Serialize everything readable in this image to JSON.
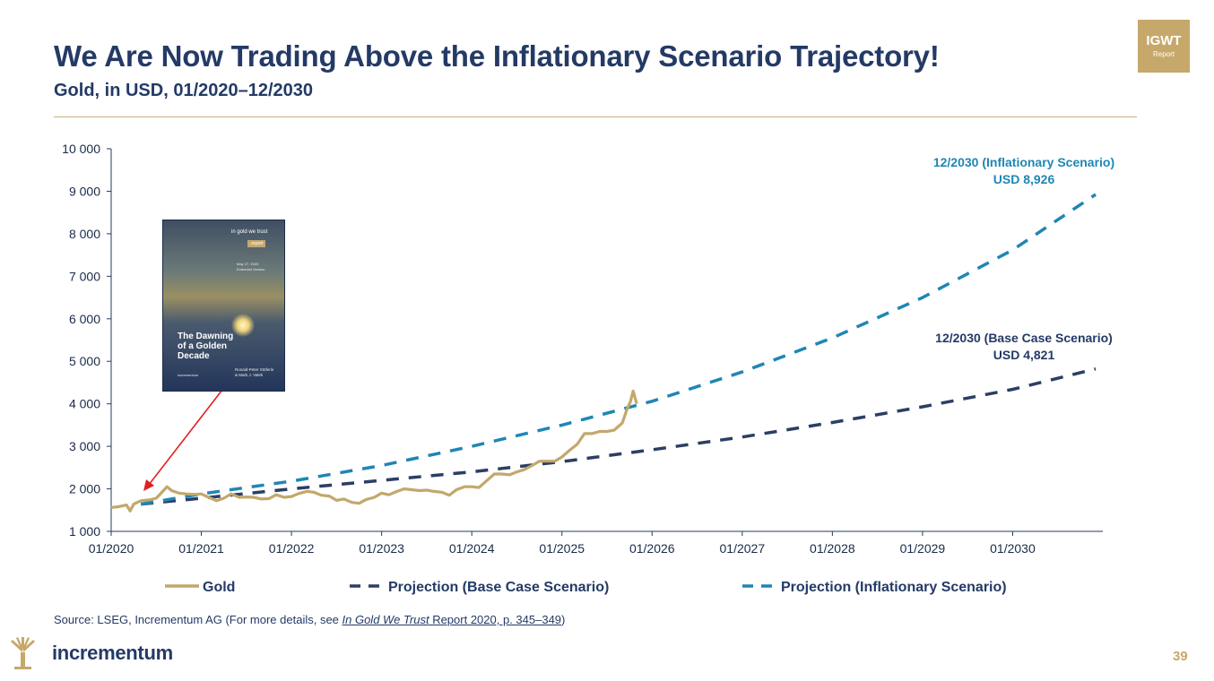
{
  "header": {
    "title": "We Are Now Trading Above the Inflationary Scenario Trajectory!",
    "subtitle": "Gold, in USD, 01/2020–12/2030",
    "badge_line1": "IGWT",
    "badge_line2": "Report"
  },
  "cover": {
    "logo_text": "in gold we trust",
    "report_tag": ".report",
    "date_line1": "May 27, 2020",
    "date_line2": "Extended Version",
    "title_line1": "The Dawning",
    "title_line2": "of a Golden",
    "title_line3": "Decade",
    "authors_line1": "Ronald-Peter Stöferle",
    "authors_line2": "& Mark J. Valek",
    "footer": "incrementum"
  },
  "colors": {
    "gold": "#c2a86b",
    "base": "#2c3e63",
    "inflation": "#1f86b4",
    "arrow": "#e02020",
    "navy": "#243a66",
    "accent": "#c6a86a"
  },
  "chart_data": {
    "type": "line",
    "y_ticks": [
      1000,
      2000,
      3000,
      4000,
      5000,
      6000,
      7000,
      8000,
      9000,
      10000
    ],
    "y_tick_labels": [
      "1 000",
      "2 000",
      "3 000",
      "4 000",
      "5 000",
      "6 000",
      "7 000",
      "8 000",
      "9 000",
      "10 000"
    ],
    "ylim": [
      1000,
      10000
    ],
    "x_ticks": [
      2020,
      2021,
      2022,
      2023,
      2024,
      2025,
      2026,
      2027,
      2028,
      2029,
      2030
    ],
    "x_tick_labels": [
      "01/2020",
      "01/2021",
      "01/2022",
      "01/2023",
      "01/2024",
      "01/2025",
      "01/2026",
      "01/2027",
      "01/2028",
      "01/2029",
      "01/2030"
    ],
    "xlim": [
      2020,
      2031
    ],
    "series": [
      {
        "name": "Gold",
        "style": "solid",
        "x": [
          2020.0,
          2020.08,
          2020.17,
          2020.21,
          2020.25,
          2020.33,
          2020.42,
          2020.5,
          2020.58,
          2020.62,
          2020.67,
          2020.75,
          2020.83,
          2020.92,
          2021.0,
          2021.08,
          2021.17,
          2021.25,
          2021.33,
          2021.42,
          2021.5,
          2021.58,
          2021.67,
          2021.75,
          2021.83,
          2021.92,
          2022.0,
          2022.08,
          2022.17,
          2022.25,
          2022.33,
          2022.42,
          2022.5,
          2022.58,
          2022.67,
          2022.75,
          2022.83,
          2022.92,
          2023.0,
          2023.08,
          2023.17,
          2023.25,
          2023.33,
          2023.42,
          2023.5,
          2023.58,
          2023.67,
          2023.75,
          2023.83,
          2023.92,
          2024.0,
          2024.08,
          2024.17,
          2024.25,
          2024.33,
          2024.42,
          2024.5,
          2024.58,
          2024.67,
          2024.75,
          2024.83,
          2024.92,
          2025.0,
          2025.08,
          2025.17,
          2025.25,
          2025.33,
          2025.42,
          2025.5,
          2025.58,
          2025.67,
          2025.72,
          2025.76,
          2025.79,
          2025.81,
          2025.83
        ],
        "values": [
          1560,
          1580,
          1620,
          1480,
          1640,
          1720,
          1740,
          1780,
          1960,
          2050,
          1960,
          1900,
          1880,
          1870,
          1880,
          1800,
          1720,
          1780,
          1880,
          1800,
          1810,
          1800,
          1760,
          1770,
          1860,
          1800,
          1820,
          1890,
          1940,
          1920,
          1850,
          1830,
          1730,
          1760,
          1680,
          1660,
          1750,
          1800,
          1900,
          1860,
          1940,
          2000,
          1980,
          1960,
          1970,
          1940,
          1920,
          1850,
          1980,
          2050,
          2050,
          2030,
          2200,
          2350,
          2350,
          2330,
          2400,
          2450,
          2550,
          2650,
          2650,
          2650,
          2750,
          2900,
          3050,
          3300,
          3300,
          3350,
          3350,
          3380,
          3550,
          3860,
          4050,
          4300,
          4150,
          4000
        ]
      },
      {
        "name": "Projection (Base Case Scenario)",
        "style": "dashed",
        "x": [
          2020.33,
          2021.0,
          2022.0,
          2023.0,
          2024.0,
          2025.0,
          2026.0,
          2027.0,
          2028.0,
          2029.0,
          2030.0,
          2030.92
        ],
        "values": [
          1640,
          1780,
          2000,
          2200,
          2400,
          2640,
          2920,
          3220,
          3560,
          3930,
          4340,
          4821
        ]
      },
      {
        "name": "Projection (Inflationary Scenario)",
        "style": "dashed",
        "x": [
          2020.33,
          2021.0,
          2022.0,
          2023.0,
          2024.0,
          2025.0,
          2026.0,
          2027.0,
          2028.0,
          2029.0,
          2030.0,
          2030.92
        ],
        "values": [
          1640,
          1880,
          2180,
          2550,
          3000,
          3500,
          4060,
          4750,
          5550,
          6500,
          7620,
          8926
        ]
      }
    ],
    "annotations": [
      {
        "line1": "12/2030 (Inflationary Scenario)",
        "line2": "USD 8,926",
        "color": "#1f86b4"
      },
      {
        "line1": "12/2030 (Base Case Scenario)",
        "line2": "USD 4,821",
        "color": "#243a66"
      }
    ],
    "legend_position": "bottom"
  },
  "source": {
    "prefix": "Source: LSEG, Incrementum AG (For more details, see ",
    "italic": "In Gold We Trust",
    "link": " Report 2020, p. 345–349",
    "suffix": ")"
  },
  "footer": {
    "brand": "incrementum",
    "page": "39"
  }
}
